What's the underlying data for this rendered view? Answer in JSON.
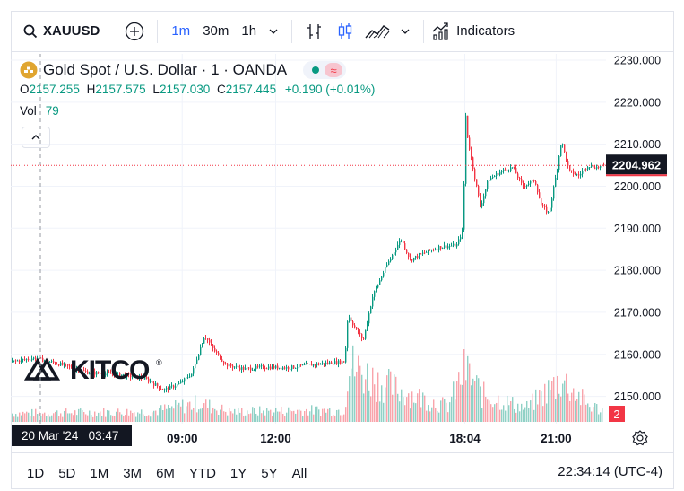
{
  "toolbar": {
    "symbol": "XAUUSD",
    "timeframes": [
      "1m",
      "30m",
      "1h"
    ],
    "active_timeframe": "1m",
    "indicators_label": "Indicators"
  },
  "legend": {
    "title": "Gold Spot / U.S. Dollar · 1 · OANDA",
    "ohlc": {
      "o_label": "O",
      "o": "2157.255",
      "h_label": "H",
      "h": "2157.575",
      "l_label": "L",
      "l": "2157.030",
      "c_label": "C",
      "c": "2157.445",
      "change": "+0.190 (+0.01%)"
    },
    "volume_label": "Vol",
    "volume": "79"
  },
  "watermark": "KITCO",
  "crosshair_date_label": "20 Mar '24   03:47",
  "price_badge": "2204.962",
  "volume_badge": "2",
  "range_buttons": [
    "1D",
    "5D",
    "1M",
    "3M",
    "6M",
    "YTD",
    "1Y",
    "5Y",
    "All"
  ],
  "clock": "22:34:14 (UTC-4)",
  "colors": {
    "up": "#089981",
    "down": "#f23645",
    "accent": "#2962ff",
    "price_line": "#f23645"
  },
  "chart_data": {
    "type": "candlestick",
    "y_ticks": [
      2150,
      2160,
      2170,
      2180,
      2190,
      2200,
      2210,
      2220,
      2230
    ],
    "y_tick_labels": [
      "2150.000",
      "2160.000",
      "2170.000",
      "2180.000",
      "2190.000",
      "2200.000",
      "2210.000",
      "2220.000",
      "2230.000"
    ],
    "ylim": [
      2143.5,
      2231.5
    ],
    "x_ticks": [
      {
        "label": "09:00",
        "t": 9.0
      },
      {
        "label": "12:00",
        "t": 12.0
      },
      {
        "label": "18:04",
        "t": 18.07
      },
      {
        "label": "21:00",
        "t": 21.0
      }
    ],
    "xlim": [
      3.5,
      22.6
    ],
    "last_price": 2204.962,
    "price_path": [
      {
        "t": 3.5,
        "p": 2158.2
      },
      {
        "t": 4.2,
        "p": 2159.1
      },
      {
        "t": 5.0,
        "p": 2157.8
      },
      {
        "t": 6.0,
        "p": 2155.6
      },
      {
        "t": 7.0,
        "p": 2155.2
      },
      {
        "t": 7.8,
        "p": 2154.2
      },
      {
        "t": 8.4,
        "p": 2151.5
      },
      {
        "t": 8.9,
        "p": 2153.0
      },
      {
        "t": 9.3,
        "p": 2155.5
      },
      {
        "t": 9.7,
        "p": 2164.6
      },
      {
        "t": 10.0,
        "p": 2161.0
      },
      {
        "t": 10.4,
        "p": 2157.5
      },
      {
        "t": 11.0,
        "p": 2156.5
      },
      {
        "t": 11.6,
        "p": 2157.0
      },
      {
        "t": 12.4,
        "p": 2156.8
      },
      {
        "t": 13.2,
        "p": 2157.6
      },
      {
        "t": 14.2,
        "p": 2158.3
      },
      {
        "t": 14.3,
        "p": 2169.5
      },
      {
        "t": 14.55,
        "p": 2166.0
      },
      {
        "t": 14.8,
        "p": 2163.5
      },
      {
        "t": 15.1,
        "p": 2174.0
      },
      {
        "t": 15.5,
        "p": 2180.5
      },
      {
        "t": 16.0,
        "p": 2187.5
      },
      {
        "t": 16.3,
        "p": 2182.5
      },
      {
        "t": 16.7,
        "p": 2184.0
      },
      {
        "t": 17.2,
        "p": 2185.5
      },
      {
        "t": 17.8,
        "p": 2186.0
      },
      {
        "t": 18.0,
        "p": 2190.0
      },
      {
        "t": 18.07,
        "p": 2218.0
      },
      {
        "t": 18.15,
        "p": 2211.0
      },
      {
        "t": 18.35,
        "p": 2203.0
      },
      {
        "t": 18.55,
        "p": 2195.0
      },
      {
        "t": 18.8,
        "p": 2201.5
      },
      {
        "t": 19.2,
        "p": 2203.5
      },
      {
        "t": 19.6,
        "p": 2204.5
      },
      {
        "t": 19.9,
        "p": 2200.0
      },
      {
        "t": 20.3,
        "p": 2201.5
      },
      {
        "t": 20.5,
        "p": 2195.5
      },
      {
        "t": 20.75,
        "p": 2193.5
      },
      {
        "t": 21.0,
        "p": 2203.5
      },
      {
        "t": 21.15,
        "p": 2211.0
      },
      {
        "t": 21.4,
        "p": 2203.5
      },
      {
        "t": 21.7,
        "p": 2202.5
      },
      {
        "t": 22.0,
        "p": 2205.0
      },
      {
        "t": 22.3,
        "p": 2204.5
      },
      {
        "t": 22.6,
        "p": 2204.96
      }
    ],
    "volume_path": [
      {
        "t": 3.5,
        "v": 25
      },
      {
        "t": 8.0,
        "v": 30
      },
      {
        "t": 9.5,
        "v": 55
      },
      {
        "t": 10.5,
        "v": 30
      },
      {
        "t": 14.2,
        "v": 35
      },
      {
        "t": 14.3,
        "v": 170
      },
      {
        "t": 15.0,
        "v": 130
      },
      {
        "t": 16.0,
        "v": 90
      },
      {
        "t": 17.5,
        "v": 45
      },
      {
        "t": 18.07,
        "v": 155
      },
      {
        "t": 18.6,
        "v": 80
      },
      {
        "t": 20.0,
        "v": 40
      },
      {
        "t": 21.15,
        "v": 125
      },
      {
        "t": 22.0,
        "v": 50
      },
      {
        "t": 22.6,
        "v": 30
      }
    ]
  }
}
